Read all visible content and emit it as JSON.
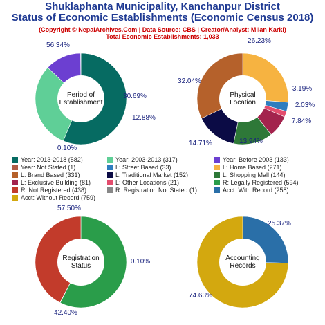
{
  "header": {
    "title_line1": "Shuklaphanta Municipality, Kanchanpur District",
    "title_line2": "Status of Economic Establishments (Economic Census 2018)",
    "credit": "(Copyright © NepalArchives.Com | Data Source: CBS | Creator/Analyst: Milan Karki)",
    "total": "Total Economic Establishments: 1,033"
  },
  "chart_data": [
    {
      "type": "pie",
      "title": "Period of Establishment",
      "center_label": [
        "Period of",
        "Establishment"
      ],
      "slices": [
        {
          "label": "Year: 2013-2018",
          "value": 582,
          "pct": "56.34%",
          "color": "#066b62"
        },
        {
          "label": "Year: 2003-2013",
          "value": 317,
          "pct": "30.69%",
          "color": "#5fcf97"
        },
        {
          "label": "Year: Before 2003",
          "value": 133,
          "pct": "12.88%",
          "color": "#6c3fd1"
        },
        {
          "label": "Year: Not Stated",
          "value": 1,
          "pct": "0.10%",
          "color": "#b05c45"
        }
      ]
    },
    {
      "type": "pie",
      "title": "Physical Location",
      "center_label": [
        "Physical",
        "Location"
      ],
      "slices": [
        {
          "label": "L: Home Based",
          "value": 271,
          "pct": "26.23%",
          "color": "#f6b341"
        },
        {
          "label": "L: Street Based",
          "value": 33,
          "pct": "3.19%",
          "color": "#2e7dbf"
        },
        {
          "label": "L: Other Locations",
          "value": 21,
          "pct": "2.03%",
          "color": "#e34c6d"
        },
        {
          "label": "L: Exclusive Building",
          "value": 81,
          "pct": "7.84%",
          "color": "#a3234d"
        },
        {
          "label": "L: Shopping Mall",
          "value": 144,
          "pct": "13.94%",
          "color": "#2e7838"
        },
        {
          "label": "L: Traditional Market",
          "value": 152,
          "pct": "14.71%",
          "color": "#0b0b45"
        },
        {
          "label": "L: Brand Based",
          "value": 331,
          "pct": "32.04%",
          "color": "#b5612b"
        }
      ]
    },
    {
      "type": "pie",
      "title": "Registration Status",
      "center_label": [
        "Registration",
        "Status"
      ],
      "slices": [
        {
          "label": "R: Legally Registered",
          "value": 594,
          "pct": "57.50%",
          "color": "#2a9d4a"
        },
        {
          "label": "R: Registration Not Stated",
          "value": 1,
          "pct": "0.10%",
          "color": "#888888"
        },
        {
          "label": "R: Not Registered",
          "value": 438,
          "pct": "42.40%",
          "color": "#c23b2b"
        }
      ]
    },
    {
      "type": "pie",
      "title": "Accounting Records",
      "center_label": [
        "Accounting",
        "Records"
      ],
      "slices": [
        {
          "label": "Acct: With Record",
          "value": 258,
          "pct": "25.37%",
          "color": "#2a6fa8"
        },
        {
          "label": "Acct: Without Record",
          "value": 759,
          "pct": "74.63%",
          "color": "#d3a80f"
        }
      ]
    }
  ],
  "legend": [
    {
      "label": "Year: 2013-2018 (582)",
      "color": "#066b62"
    },
    {
      "label": "Year: 2003-2013 (317)",
      "color": "#5fcf97"
    },
    {
      "label": "Year: Before 2003 (133)",
      "color": "#6c3fd1"
    },
    {
      "label": "Year: Not Stated (1)",
      "color": "#b05c45"
    },
    {
      "label": "L: Street Based (33)",
      "color": "#2e7dbf"
    },
    {
      "label": "L: Home Based (271)",
      "color": "#f6b341"
    },
    {
      "label": "L: Brand Based (331)",
      "color": "#b5612b"
    },
    {
      "label": "L: Traditional Market (152)",
      "color": "#0b0b45"
    },
    {
      "label": "L: Shopping Mall (144)",
      "color": "#2e7838"
    },
    {
      "label": "L: Exclusive Building (81)",
      "color": "#a3234d"
    },
    {
      "label": "L: Other Locations (21)",
      "color": "#e34c6d"
    },
    {
      "label": "R: Legally Registered (594)",
      "color": "#2a9d4a"
    },
    {
      "label": "R: Not Registered (438)",
      "color": "#c23b2b"
    },
    {
      "label": "R: Registration Not Stated (1)",
      "color": "#888888"
    },
    {
      "label": "Acct: With Record (258)",
      "color": "#2a6fa8"
    },
    {
      "label": "Acct: Without Record (759)",
      "color": "#d3a80f"
    }
  ]
}
